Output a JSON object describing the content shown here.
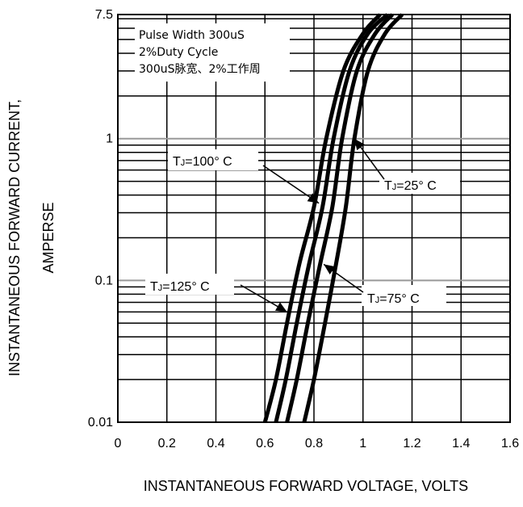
{
  "chart_data": {
    "type": "line",
    "title": "",
    "xlabel": "INSTANTANEOUS FORWARD VOLTAGE,  VOLTS",
    "ylabel_lines": [
      "INSTANTANEOUS FORWARD CURRENT,",
      "AMPERSE"
    ],
    "xlim": [
      0,
      1.6
    ],
    "ylim": [
      0.01,
      7.5
    ],
    "y_scale": "log",
    "grid": true,
    "x_ticks": [
      "0",
      "0.2",
      "0.4",
      "0.6",
      "0.8",
      "1",
      "1.2",
      "1.4",
      "1.6"
    ],
    "y_ticks": [
      {
        "value": 7.5,
        "label": "7.5"
      },
      {
        "value": 1,
        "label": "1"
      },
      {
        "value": 0.1,
        "label": "0.1"
      },
      {
        "value": 0.01,
        "label": "0.01"
      }
    ],
    "legend": {
      "placement": "top-left",
      "lines": [
        "Pulse Width 300uS",
        "2%Duty Cycle",
        "300uS脉宽、2%工作周"
      ]
    },
    "series": [
      {
        "name": "TJ=125° C",
        "points": [
          [
            0.6,
            0.01
          ],
          [
            0.645,
            0.02
          ],
          [
            0.69,
            0.05
          ],
          [
            0.74,
            0.13
          ],
          [
            0.8,
            0.33
          ],
          [
            0.85,
            1.0
          ],
          [
            0.92,
            3.0
          ],
          [
            1.0,
            5.5
          ],
          [
            1.07,
            7.5
          ]
        ]
      },
      {
        "name": "TJ=100° C",
        "points": [
          [
            0.645,
            0.01
          ],
          [
            0.685,
            0.02
          ],
          [
            0.73,
            0.05
          ],
          [
            0.78,
            0.13
          ],
          [
            0.835,
            0.33
          ],
          [
            0.88,
            1.0
          ],
          [
            0.945,
            3.0
          ],
          [
            1.02,
            5.5
          ],
          [
            1.1,
            7.5
          ]
        ]
      },
      {
        "name": "TJ=75° C",
        "points": [
          [
            0.69,
            0.01
          ],
          [
            0.73,
            0.02
          ],
          [
            0.775,
            0.05
          ],
          [
            0.825,
            0.13
          ],
          [
            0.875,
            0.33
          ],
          [
            0.915,
            1.0
          ],
          [
            0.975,
            3.0
          ],
          [
            1.05,
            5.5
          ],
          [
            1.12,
            7.5
          ]
        ]
      },
      {
        "name": "TJ=25° C",
        "points": [
          [
            0.76,
            0.01
          ],
          [
            0.8,
            0.02
          ],
          [
            0.845,
            0.05
          ],
          [
            0.89,
            0.13
          ],
          [
            0.93,
            0.33
          ],
          [
            0.965,
            1.0
          ],
          [
            1.02,
            3.0
          ],
          [
            1.09,
            5.5
          ],
          [
            1.16,
            7.5
          ]
        ]
      }
    ],
    "annotations": [
      {
        "prefix": "T",
        "sub": "J",
        "suffix": "=100° C",
        "series": "TJ=100° C",
        "arrow_to": [
          0.82,
          0.35
        ]
      },
      {
        "prefix": "T",
        "sub": "J",
        "suffix": "=25° C",
        "series": "TJ=25° C",
        "arrow_to": [
          0.965,
          1.0
        ]
      },
      {
        "prefix": "T",
        "sub": "J",
        "suffix": "=125° C",
        "series": "TJ=125° C",
        "arrow_to": [
          0.69,
          0.06
        ]
      },
      {
        "prefix": "T",
        "sub": "J",
        "suffix": "=75° C",
        "series": "TJ=75° C",
        "arrow_to": [
          0.84,
          0.13
        ]
      }
    ]
  }
}
